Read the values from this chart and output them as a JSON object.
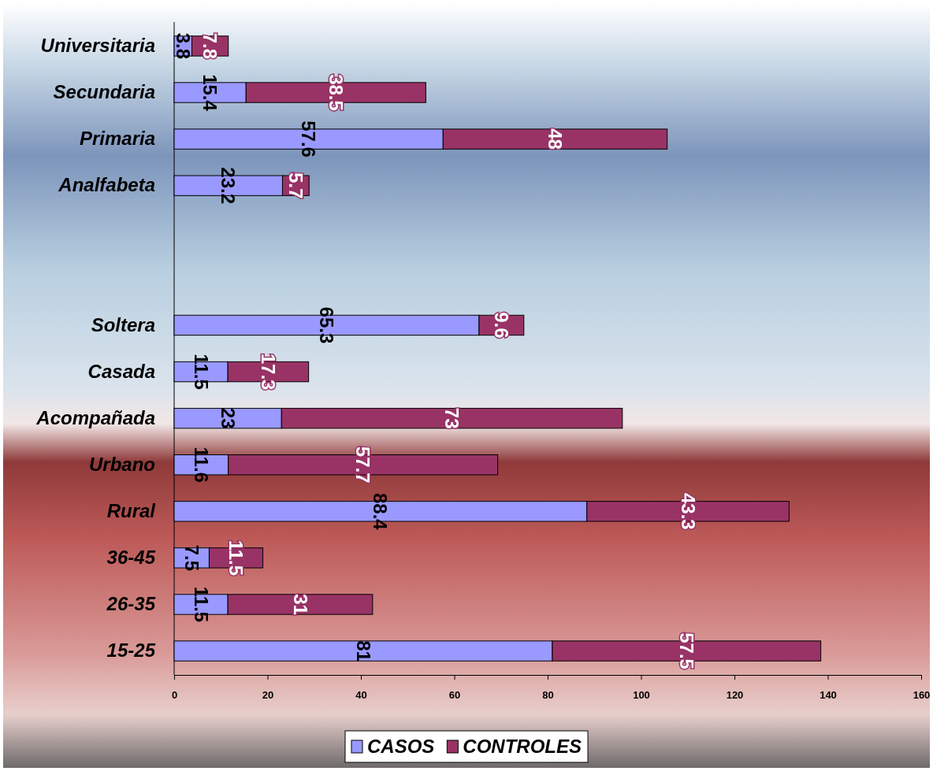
{
  "chart_data": {
    "type": "bar",
    "orientation": "horizontal",
    "stacked": true,
    "categories": [
      "Universitaria",
      "Secundaria",
      "Primaria",
      "Analfabeta",
      null,
      null,
      "Soltera",
      "Casada",
      "Acompañada",
      "Urbano",
      "Rural",
      "36-45",
      "26-35",
      "15-25"
    ],
    "series": [
      {
        "name": "CASOS",
        "color": "#9999ff",
        "values": [
          3.8,
          15.4,
          57.6,
          23.2,
          null,
          null,
          65.3,
          11.5,
          23,
          11.6,
          88.4,
          7.5,
          11.5,
          81
        ]
      },
      {
        "name": "CONTROLES",
        "color": "#993366",
        "values": [
          7.8,
          38.5,
          48,
          5.7,
          null,
          null,
          9.6,
          17.3,
          73,
          57.7,
          43.3,
          11.5,
          31,
          57.5
        ]
      }
    ],
    "xlim": [
      0,
      160
    ],
    "xticks": [
      0,
      20,
      40,
      60,
      80,
      100,
      120,
      140,
      160
    ],
    "data_labels": true,
    "legend": "bottom",
    "grid": false
  }
}
